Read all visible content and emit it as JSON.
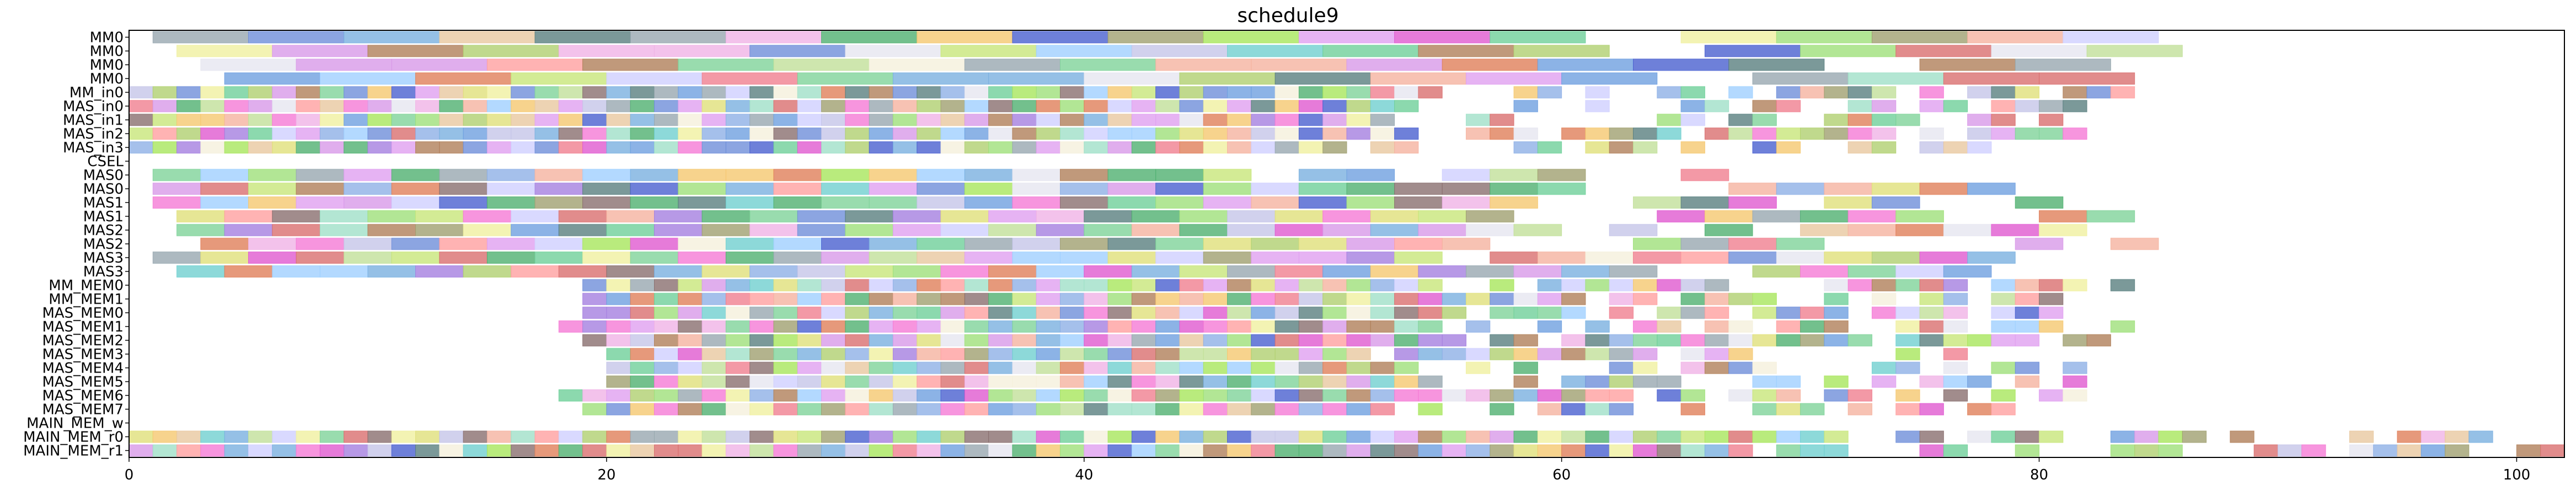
{
  "chart_data": {
    "type": "gantt",
    "title": "schedule9",
    "xlim": [
      0,
      102
    ],
    "x_ticks": [
      0,
      20,
      40,
      60,
      80,
      100
    ],
    "grid": false,
    "rows": [
      "MM0",
      "MM0",
      "MM0",
      "MM0",
      "MM_in0",
      "MAS_in0",
      "MAS_in1",
      "MAS_in2",
      "MAS_in3",
      "CSEL",
      "MAS0",
      "MAS0",
      "MAS1",
      "MAS1",
      "MAS2",
      "MAS2",
      "MAS3",
      "MAS3",
      "MM_MEM0",
      "MM_MEM1",
      "MAS_MEM0",
      "MAS_MEM1",
      "MAS_MEM2",
      "MAS_MEM3",
      "MAS_MEM4",
      "MAS_MEM5",
      "MAS_MEM6",
      "MAS_MEM7",
      "MAIN_MEM_w",
      "MAIN_MEM_r0",
      "MAIN_MEM_r1"
    ],
    "task_ranges": [
      {
        "row": 0,
        "start": 1.0,
        "end": 85.0,
        "width": 4.0
      },
      {
        "row": 1,
        "start": 2.0,
        "end": 86.0,
        "width": 4.0
      },
      {
        "row": 2,
        "start": 3.0,
        "end": 87.0,
        "width": 4.0
      },
      {
        "row": 3,
        "start": 4.0,
        "end": 88.0,
        "width": 4.0
      },
      {
        "row": 4,
        "start": 0.0,
        "end": 84.0,
        "width": 1.0
      },
      {
        "row": 5,
        "start": 0.0,
        "end": 82.0,
        "width": 1.0
      },
      {
        "row": 6,
        "start": 0.0,
        "end": 81.0,
        "width": 1.0
      },
      {
        "row": 7,
        "start": 0.0,
        "end": 82.0,
        "width": 1.0
      },
      {
        "row": 8,
        "start": 0.0,
        "end": 78.0,
        "width": 1.0
      },
      {
        "row": 10,
        "start": 1.0,
        "end": 67.0,
        "width": 2.0
      },
      {
        "row": 11,
        "start": 1.0,
        "end": 81.0,
        "width": 2.0
      },
      {
        "row": 12,
        "start": 1.0,
        "end": 84.0,
        "width": 2.0
      },
      {
        "row": 13,
        "start": 2.0,
        "end": 84.0,
        "width": 2.0
      },
      {
        "row": 14,
        "start": 2.0,
        "end": 82.0,
        "width": 2.0
      },
      {
        "row": 15,
        "start": 3.0,
        "end": 85.0,
        "width": 2.0
      },
      {
        "row": 16,
        "start": 1.0,
        "end": 82.0,
        "width": 2.0
      },
      {
        "row": 17,
        "start": 2.0,
        "end": 80.0,
        "width": 2.0
      },
      {
        "row": 18,
        "start": 19.0,
        "end": 84.0,
        "width": 1.0
      },
      {
        "row": 19,
        "start": 19.0,
        "end": 82.0,
        "width": 1.0
      },
      {
        "row": 20,
        "start": 19.0,
        "end": 82.0,
        "width": 1.0
      },
      {
        "row": 21,
        "start": 18.0,
        "end": 84.0,
        "width": 1.0
      },
      {
        "row": 22,
        "start": 19.0,
        "end": 83.0,
        "width": 1.0
      },
      {
        "row": 23,
        "start": 20.0,
        "end": 77.0,
        "width": 1.0
      },
      {
        "row": 24,
        "start": 20.0,
        "end": 83.0,
        "width": 1.0
      },
      {
        "row": 25,
        "start": 20.0,
        "end": 82.0,
        "width": 1.0
      },
      {
        "row": 26,
        "start": 18.0,
        "end": 82.0,
        "width": 1.0
      },
      {
        "row": 27,
        "start": 19.0,
        "end": 79.0,
        "width": 1.0
      },
      {
        "row": 29,
        "start": 0.0,
        "end": 102.0,
        "width": 1.0
      },
      {
        "row": 30,
        "start": 0.0,
        "end": 102.0,
        "width": 1.0
      }
    ],
    "palette": [
      "#7fd39a",
      "#f57bd6",
      "#a57fe0",
      "#d96f6f",
      "#9fe07a",
      "#f5f0dc",
      "#f0b3e6",
      "#e05ad0",
      "#e07f5a",
      "#6fd09a",
      "#c2e09a",
      "#f5b3a0",
      "#6f8fd9",
      "#a8e65c",
      "#8fb0e6",
      "#e6e6f0",
      "#d89ae8",
      "#b07f5a",
      "#c5c5e8",
      "#6fa0e0",
      "#c8e67a",
      "#8a6f6f",
      "#a0e0c8",
      "#e0e07a",
      "#f08090",
      "#7ab0e0",
      "#98a8b0",
      "#5a7f7f",
      "#f5c870",
      "#a0a070",
      "#70d0d0",
      "#e0a0f0",
      "#b0d070",
      "#4a60d0",
      "#f0f0a0",
      "#50b070",
      "#d0d0ff",
      "#ffa0a0",
      "#a0d0ff",
      "#e8c8a0"
    ]
  }
}
